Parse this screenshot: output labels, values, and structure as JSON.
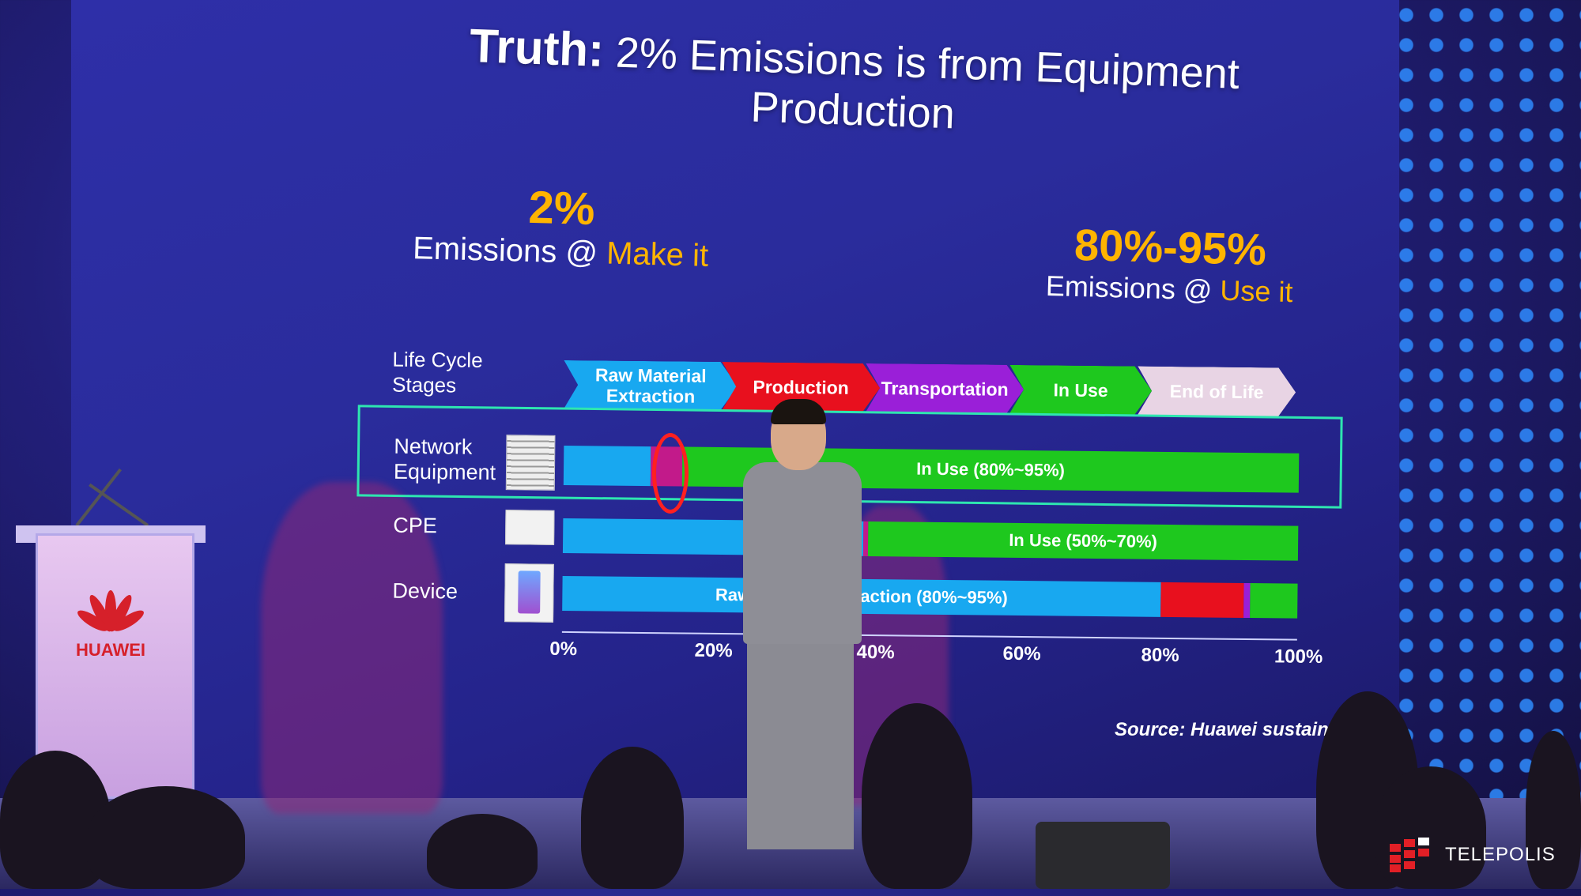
{
  "slide": {
    "title_lead": "Truth:",
    "title_rest": " 2% Emissions is from Equipment Production"
  },
  "stats": {
    "left": {
      "value": "2%",
      "label": "Emissions @ ",
      "accent": "Make it"
    },
    "right": {
      "value": "80%-95%",
      "label": "Emissions @ ",
      "accent": "Use it"
    }
  },
  "chart": {
    "life_cycle_label_1": "Life Cycle",
    "life_cycle_label_2": "Stages",
    "stages": [
      {
        "label": "Raw Material Extraction",
        "color": "#18a8f0"
      },
      {
        "label": "Production",
        "color": "#e8101e"
      },
      {
        "label": "Transportation",
        "color": "#9a1fd8"
      },
      {
        "label": "In Use",
        "color": "#1ec81e"
      },
      {
        "label": "End of Life",
        "color": "#e8d4e4"
      }
    ],
    "rows": [
      {
        "name_1": "Network",
        "name_2": "Equipment"
      },
      {
        "name_1": "CPE",
        "name_2": ""
      },
      {
        "name_1": "Device",
        "name_2": ""
      }
    ],
    "bar_texts": {
      "network_use": "In Use (80%~95%)",
      "cpe_use": "In Use (50%~70%)",
      "device_raw": "Raw Material Extraction (80%~95%)"
    },
    "ticks": [
      "0%",
      "20%",
      "40%",
      "60%",
      "80%",
      "100%"
    ],
    "source": "Source: Huawei sustainabilit"
  },
  "podium": {
    "brand": "HUAWEI"
  },
  "watermark": {
    "text": "TELEPOLIS"
  }
}
